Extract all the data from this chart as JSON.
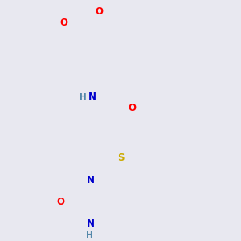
{
  "bg_color": "#e8e8f0",
  "bond_color": "#1a1a1a",
  "bond_width": 1.5,
  "atom_colors": {
    "O": "#ff0000",
    "N": "#0000cc",
    "S": "#ccaa00",
    "C": "#1a1a1a",
    "H": "#5588aa"
  },
  "font_size": 8.5
}
